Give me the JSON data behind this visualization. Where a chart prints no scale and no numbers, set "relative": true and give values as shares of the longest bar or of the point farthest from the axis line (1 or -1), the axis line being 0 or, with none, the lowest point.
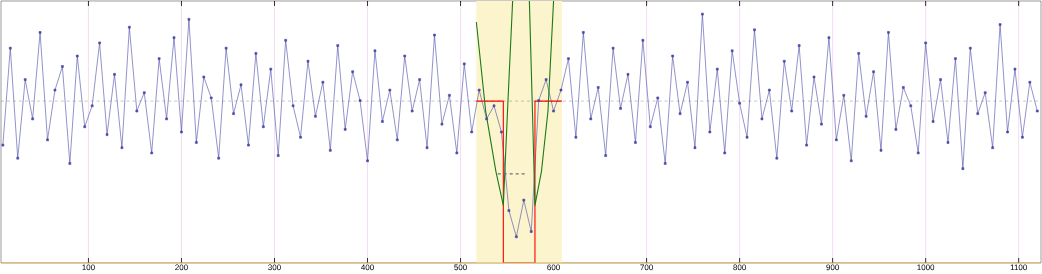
{
  "chart_data": {
    "type": "line",
    "relative": true,
    "xlim": [
      6,
      1124
    ],
    "xticks": [
      100,
      200,
      300,
      400,
      500,
      600,
      700,
      800,
      900,
      1000,
      1100
    ],
    "grid": "x",
    "tick_labels": "x",
    "bands": [
      {
        "axis": "x",
        "from": 517,
        "to": 609,
        "color": "#fbf4cc"
      }
    ],
    "ref_lines": [
      {
        "axis": "y",
        "value": 0.618,
        "color": "#707070",
        "line_style": "dashed"
      }
    ],
    "series": [
      {
        "color": "#4a4aa8",
        "marker": "square",
        "line_style": "solid",
        "x": [
          8,
          16,
          24,
          32,
          40,
          48,
          56,
          64,
          72,
          80,
          88,
          96,
          104,
          112,
          120,
          128,
          136,
          144,
          152,
          160,
          168,
          176,
          184,
          192,
          200,
          208,
          216,
          224,
          232,
          240,
          248,
          256,
          264,
          272,
          280,
          288,
          296,
          304,
          312,
          320,
          328,
          336,
          344,
          352,
          360,
          368,
          376,
          384,
          392,
          400,
          408,
          416,
          424,
          432,
          440,
          448,
          456,
          464,
          472,
          480,
          488,
          496,
          504,
          512,
          520,
          528,
          536,
          544,
          552,
          560,
          568,
          576,
          584,
          592,
          600,
          608,
          616,
          624,
          632,
          640,
          648,
          656,
          664,
          672,
          680,
          688,
          696,
          704,
          712,
          720,
          728,
          736,
          744,
          752,
          760,
          768,
          776,
          784,
          792,
          800,
          808,
          816,
          824,
          832,
          840,
          848,
          856,
          864,
          872,
          880,
          888,
          896,
          904,
          912,
          920,
          928,
          936,
          944,
          952,
          960,
          968,
          976,
          984,
          992,
          1000,
          1008,
          1016,
          1024,
          1032,
          1040,
          1048,
          1056,
          1064,
          1072,
          1080,
          1088,
          1096,
          1104,
          1112,
          1120
        ],
        "values": [
          0.45,
          0.82,
          0.4,
          0.7,
          0.55,
          0.88,
          0.47,
          0.66,
          0.75,
          0.38,
          0.79,
          0.52,
          0.6,
          0.84,
          0.49,
          0.72,
          0.44,
          0.9,
          0.58,
          0.65,
          0.42,
          0.78,
          0.55,
          0.86,
          0.5,
          0.93,
          0.46,
          0.71,
          0.63,
          0.4,
          0.82,
          0.57,
          0.68,
          0.45,
          0.8,
          0.52,
          0.74,
          0.41,
          0.85,
          0.6,
          0.48,
          0.77,
          0.56,
          0.69,
          0.43,
          0.83,
          0.51,
          0.73,
          0.62,
          0.39,
          0.81,
          0.54,
          0.66,
          0.47,
          0.79,
          0.58,
          0.7,
          0.44,
          0.87,
          0.53,
          0.64,
          0.42,
          0.76,
          0.5,
          0.66,
          0.55,
          0.6,
          0.5,
          0.2,
          0.1,
          0.24,
          0.12,
          0.62,
          0.7,
          0.58,
          0.66,
          0.78,
          0.48,
          0.88,
          0.55,
          0.67,
          0.41,
          0.82,
          0.59,
          0.72,
          0.46,
          0.85,
          0.52,
          0.63,
          0.38,
          0.79,
          0.57,
          0.69,
          0.44,
          0.95,
          0.5,
          0.74,
          0.42,
          0.81,
          0.61,
          0.48,
          0.89,
          0.55,
          0.66,
          0.4,
          0.77,
          0.58,
          0.83,
          0.45,
          0.71,
          0.53,
          0.86,
          0.47,
          0.64,
          0.39,
          0.8,
          0.56,
          0.73,
          0.43,
          0.88,
          0.51,
          0.67,
          0.6,
          0.42,
          0.84,
          0.54,
          0.7,
          0.46,
          0.78,
          0.36,
          0.82,
          0.57,
          0.65,
          0.44,
          0.91,
          0.5,
          0.74,
          0.48,
          0.69,
          0.58
        ]
      },
      {
        "color": "#ff0000",
        "marker": "none",
        "line_style": "solid",
        "x": [
          517,
          546,
          546,
          580,
          580,
          609
        ],
        "values": [
          0.618,
          0.618,
          0,
          0,
          0.618,
          0.618
        ]
      },
      {
        "color": "#1a7a1a",
        "marker": "none",
        "line_style": "solid",
        "x": [
          517,
          527,
          538,
          546,
          551,
          556
        ],
        "values": [
          0.92,
          0.58,
          0.35,
          0.22,
          0.62,
          1.0
        ]
      },
      {
        "color": "#1a7a1a",
        "marker": "none",
        "line_style": "solid",
        "x": [
          574,
          577,
          580,
          587,
          594,
          600
        ],
        "values": [
          1.0,
          0.62,
          0.22,
          0.35,
          0.58,
          1.0
        ]
      },
      {
        "color": "#707070",
        "marker": "none",
        "line_style": "dashed",
        "x": [
          540,
          570
        ],
        "values": [
          0.34,
          0.34
        ]
      }
    ]
  }
}
